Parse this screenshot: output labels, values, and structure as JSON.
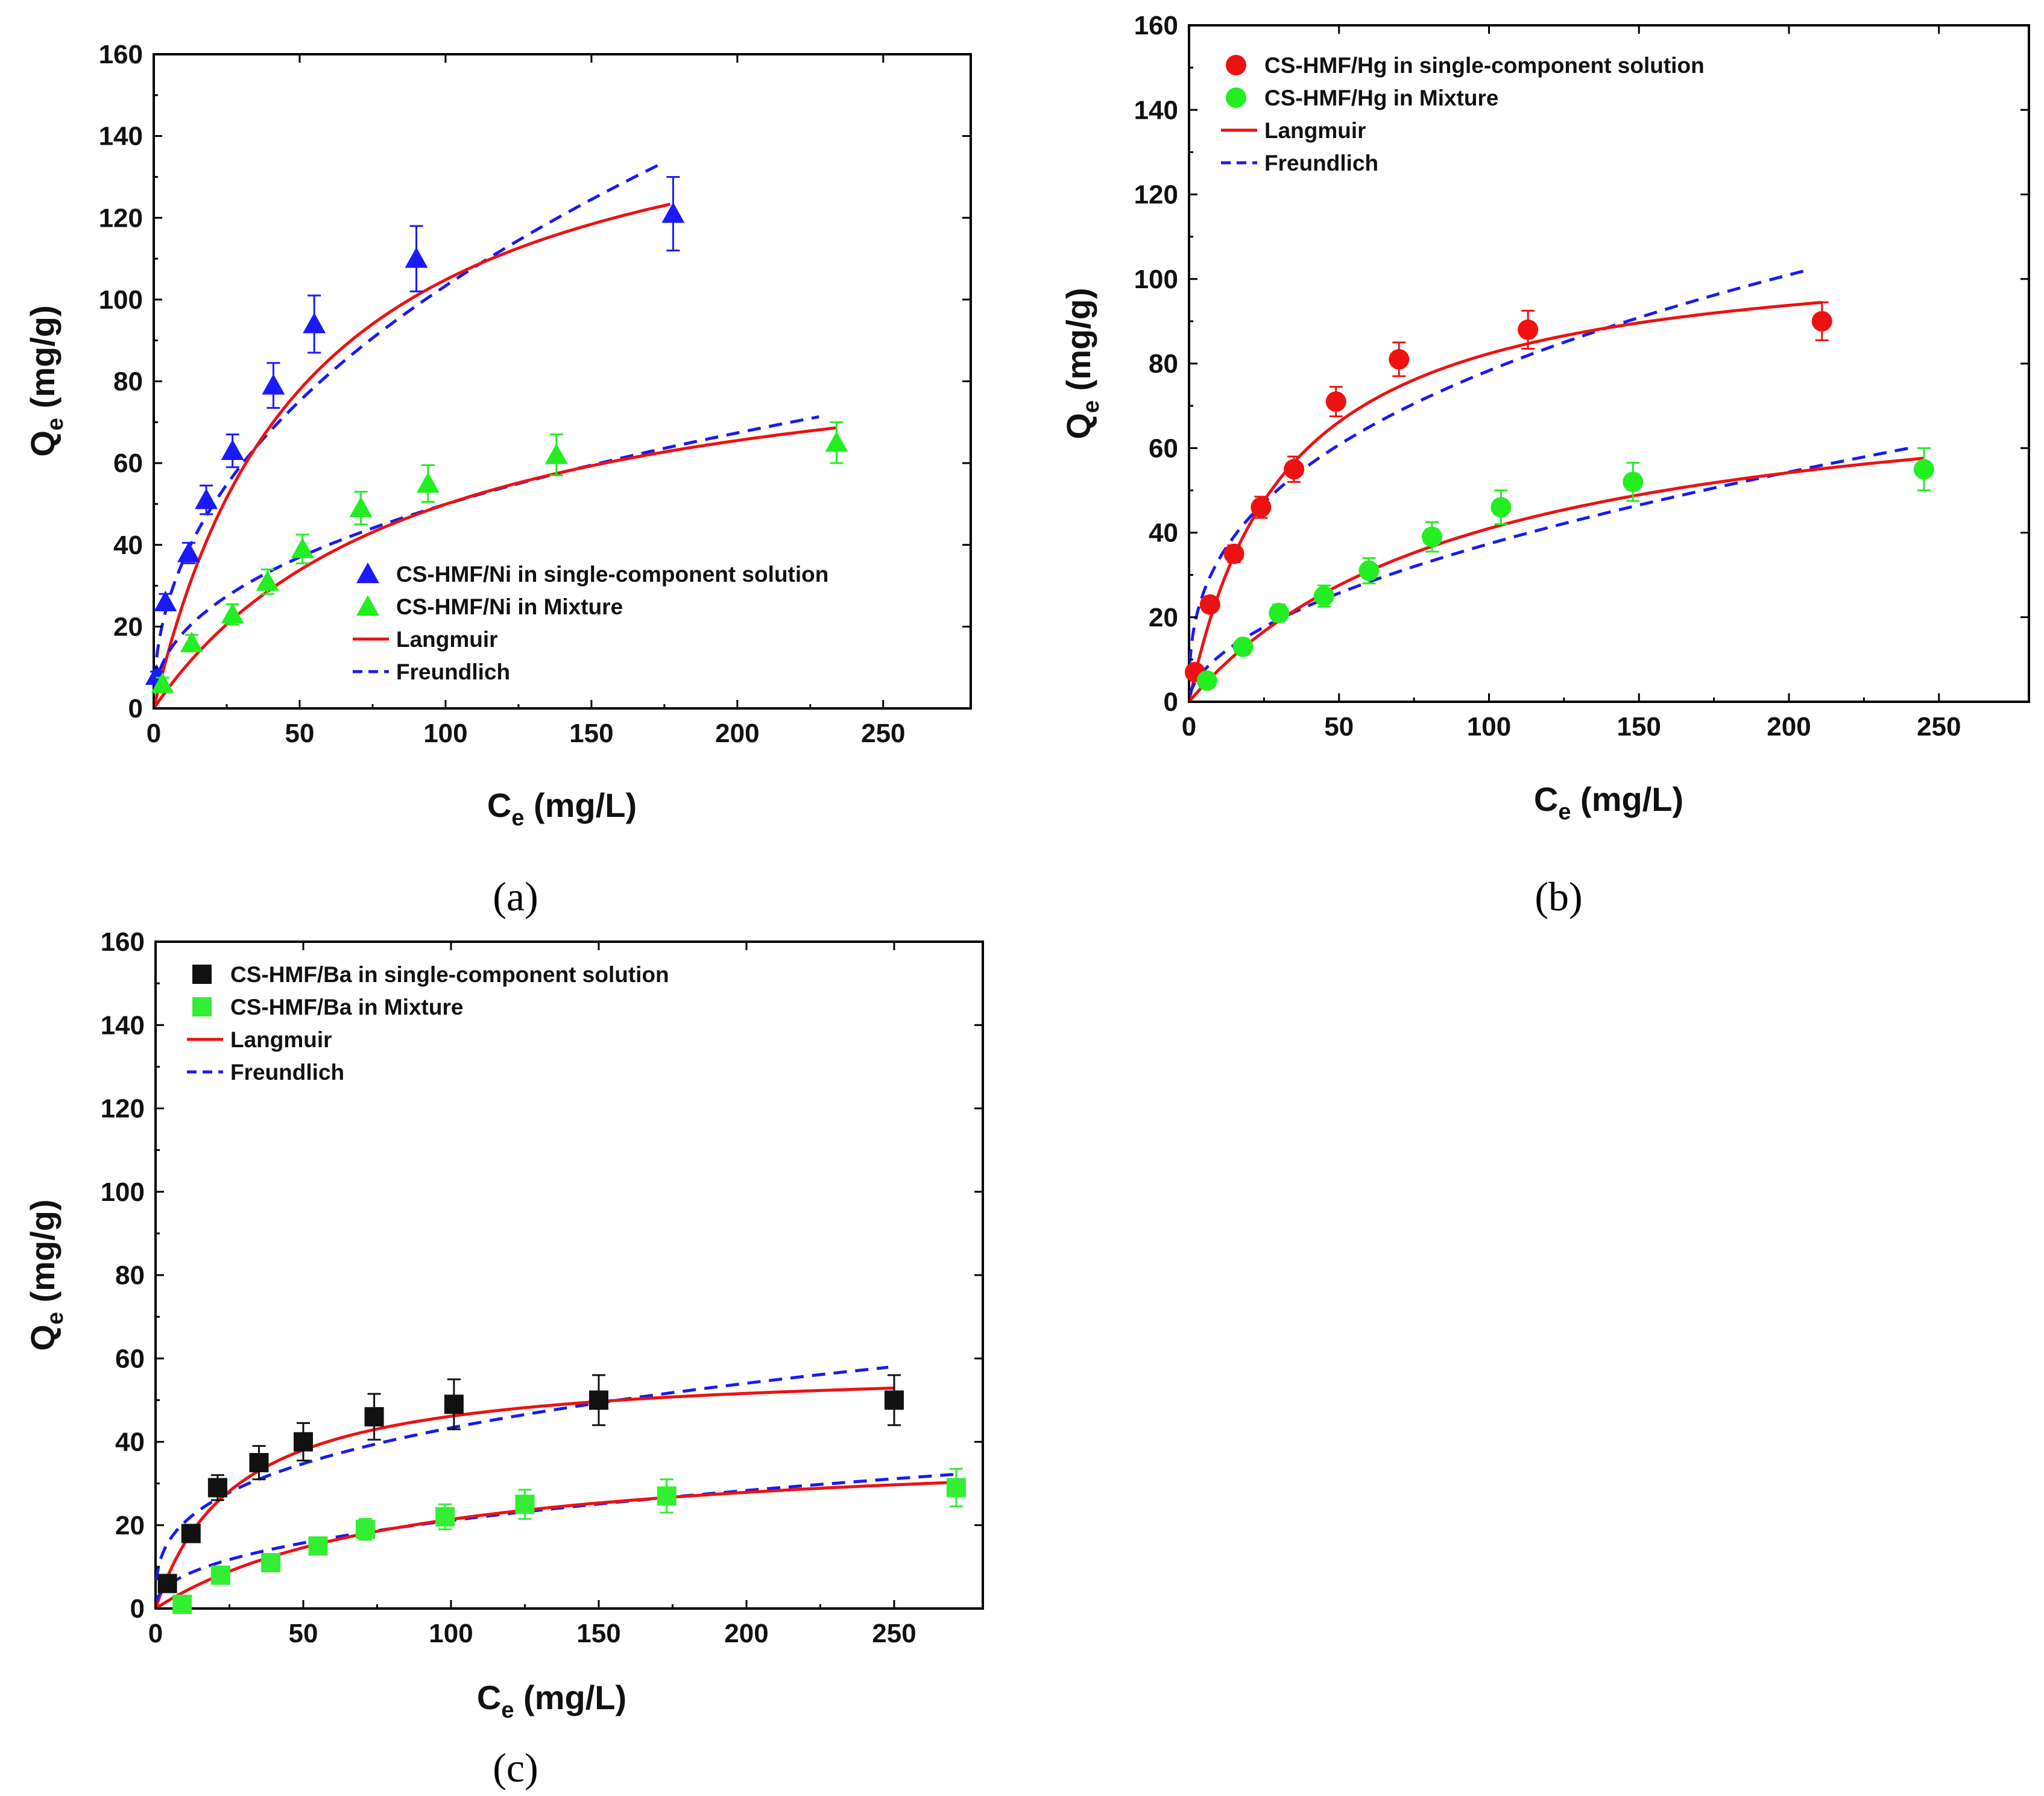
{
  "figure": {
    "panels": [
      "a",
      "b",
      "c"
    ]
  },
  "chart_data": [
    {
      "id": "a",
      "type": "scatter",
      "caption": "(a)",
      "xlabel": "C",
      "xlabel_sub": "e",
      "xlabel_unit": " (mg/L)",
      "ylabel": "Q",
      "ylabel_sub": "e",
      "ylabel_unit": " (mg/g)",
      "xlim": [
        0,
        280
      ],
      "ylim": [
        0,
        160
      ],
      "xticks": [
        0,
        50,
        100,
        150,
        200,
        250
      ],
      "yticks": [
        0,
        20,
        40,
        60,
        80,
        100,
        120,
        140,
        160
      ],
      "legend_position": "center-right",
      "series": [
        {
          "name": "CS-HMF/Ni in single-component solution",
          "marker": "triangle",
          "color": "#1a1aff",
          "errbar_color": "#1a1aff",
          "points": [
            {
              "x": 1,
              "y": 8,
              "err": 1
            },
            {
              "x": 4,
              "y": 26,
              "err": 2
            },
            {
              "x": 12,
              "y": 38,
              "err": 2.5
            },
            {
              "x": 18,
              "y": 51,
              "err": 3.5
            },
            {
              "x": 27,
              "y": 63,
              "err": 4
            },
            {
              "x": 41,
              "y": 79,
              "err": 5.5
            },
            {
              "x": 55,
              "y": 94,
              "err": 7
            },
            {
              "x": 90,
              "y": 110,
              "err": 8
            },
            {
              "x": 178,
              "y": 121,
              "err": 9
            }
          ],
          "langmuir": {
            "qmax": 160,
            "kl": 0.019,
            "xmax": 177
          },
          "freundlich": {
            "kf": 12.5,
            "n": 2.18,
            "xmax": 173
          }
        },
        {
          "name": "CS-HMF/Ni in Mixture",
          "marker": "triangle",
          "color": "#22ee22",
          "errbar_color": "#22ee22",
          "points": [
            {
              "x": 3,
              "y": 6,
              "err": 1.5
            },
            {
              "x": 13,
              "y": 16,
              "err": 2
            },
            {
              "x": 27,
              "y": 23,
              "err": 2.5
            },
            {
              "x": 39,
              "y": 31,
              "err": 3
            },
            {
              "x": 51,
              "y": 39,
              "err": 3.5
            },
            {
              "x": 71,
              "y": 49,
              "err": 4
            },
            {
              "x": 94,
              "y": 55,
              "err": 4.5
            },
            {
              "x": 138,
              "y": 62,
              "err": 5
            },
            {
              "x": 234,
              "y": 65,
              "err": 5
            }
          ],
          "langmuir": {
            "qmax": 95.3,
            "kl": 0.011,
            "xmax": 234
          },
          "freundlich": {
            "kf": 6.8,
            "n": 2.31,
            "xmax": 228
          }
        }
      ],
      "fit_legend": [
        {
          "name": "Langmuir",
          "style": "solid",
          "color": "#ee1111"
        },
        {
          "name": "Freundlich",
          "style": "dashed",
          "color": "#1a1aee"
        }
      ]
    },
    {
      "id": "b",
      "type": "scatter",
      "caption": "(b)",
      "xlabel": "C",
      "xlabel_sub": "e",
      "xlabel_unit": " (mg/L)",
      "ylabel": "Q",
      "ylabel_sub": "e",
      "ylabel_unit": " (mg/g)",
      "xlim": [
        0,
        280
      ],
      "ylim": [
        0,
        160
      ],
      "xticks": [
        0,
        50,
        100,
        150,
        200,
        250
      ],
      "yticks": [
        0,
        20,
        40,
        60,
        80,
        100,
        120,
        140,
        160
      ],
      "legend_position": "top-left",
      "series": [
        {
          "name": "CS-HMF/Hg in single-component solution",
          "marker": "circle",
          "color": "#ee1111",
          "errbar_color": "#ee1111",
          "points": [
            {
              "x": 2,
              "y": 7,
              "err": 1
            },
            {
              "x": 7,
              "y": 23,
              "err": 1.5
            },
            {
              "x": 15,
              "y": 35,
              "err": 2
            },
            {
              "x": 24,
              "y": 46,
              "err": 2.5
            },
            {
              "x": 35,
              "y": 55,
              "err": 3
            },
            {
              "x": 49,
              "y": 71,
              "err": 3.5
            },
            {
              "x": 70,
              "y": 81,
              "err": 4
            },
            {
              "x": 113,
              "y": 88,
              "err": 4.5
            },
            {
              "x": 211,
              "y": 90,
              "err": 4.5
            }
          ],
          "langmuir": {
            "qmax": 108.9,
            "kl": 0.031,
            "xmax": 211
          },
          "freundlich": {
            "kf": 14.5,
            "n": 2.73,
            "xmax": 206
          }
        },
        {
          "name": "CS-HMF/Hg in Mixture",
          "marker": "circle",
          "color": "#22ee22",
          "errbar_color": "#22ee22",
          "points": [
            {
              "x": 6,
              "y": 5,
              "err": 1
            },
            {
              "x": 18,
              "y": 13,
              "err": 1.5
            },
            {
              "x": 30,
              "y": 21,
              "err": 2
            },
            {
              "x": 45,
              "y": 25,
              "err": 2.5
            },
            {
              "x": 60,
              "y": 31,
              "err": 3
            },
            {
              "x": 81,
              "y": 39,
              "err": 3.5
            },
            {
              "x": 104,
              "y": 46,
              "err": 4
            },
            {
              "x": 148,
              "y": 52,
              "err": 4.5
            },
            {
              "x": 245,
              "y": 55,
              "err": 5
            }
          ],
          "langmuir": {
            "qmax": 80,
            "kl": 0.0105,
            "xmax": 245
          },
          "freundlich": {
            "kf": 3.1,
            "n": 1.85,
            "xmax": 242
          }
        }
      ],
      "fit_legend": [
        {
          "name": "Langmuir",
          "style": "solid",
          "color": "#ee1111"
        },
        {
          "name": "Freundlich",
          "style": "dashed",
          "color": "#1a1aee"
        }
      ]
    },
    {
      "id": "c",
      "type": "scatter",
      "caption": "(c)",
      "xlabel": "C",
      "xlabel_sub": "e",
      "xlabel_unit": " (mg/L)",
      "ylabel": "Q",
      "ylabel_sub": "e",
      "ylabel_unit": " (mg/g)",
      "xlim": [
        0,
        280
      ],
      "ylim": [
        0,
        160
      ],
      "xticks": [
        0,
        50,
        100,
        150,
        200,
        250
      ],
      "yticks": [
        0,
        20,
        40,
        60,
        80,
        100,
        120,
        140,
        160
      ],
      "legend_position": "top-left",
      "series": [
        {
          "name": "CS-HMF/Ba in single-component solution",
          "marker": "square",
          "color": "#111111",
          "errbar_color": "#111111",
          "points": [
            {
              "x": 4,
              "y": 6,
              "err": 1
            },
            {
              "x": 12,
              "y": 18,
              "err": 2
            },
            {
              "x": 21,
              "y": 29,
              "err": 3
            },
            {
              "x": 35,
              "y": 35,
              "err": 4
            },
            {
              "x": 50,
              "y": 40,
              "err": 4.5
            },
            {
              "x": 74,
              "y": 46,
              "err": 5.5
            },
            {
              "x": 101,
              "y": 49,
              "err": 6
            },
            {
              "x": 150,
              "y": 50,
              "err": 6
            },
            {
              "x": 250,
              "y": 50,
              "err": 6
            }
          ],
          "langmuir": {
            "qmax": 58.6,
            "kl": 0.037,
            "xmax": 250
          },
          "freundlich": {
            "kf": 10,
            "n": 3.14,
            "xmax": 248
          }
        },
        {
          "name": "CS-HMF/Ba in Mixture",
          "marker": "square",
          "color": "#33ee33",
          "errbar_color": "#33ee33",
          "points": [
            {
              "x": 9,
              "y": 1,
              "err": 1
            },
            {
              "x": 22,
              "y": 8,
              "err": 1
            },
            {
              "x": 39,
              "y": 11,
              "err": 1.5
            },
            {
              "x": 55,
              "y": 15,
              "err": 2
            },
            {
              "x": 71,
              "y": 19,
              "err": 2.5
            },
            {
              "x": 98,
              "y": 22,
              "err": 3
            },
            {
              "x": 125,
              "y": 25,
              "err": 3.5
            },
            {
              "x": 173,
              "y": 27,
              "err": 4
            },
            {
              "x": 271,
              "y": 29,
              "err": 4.5
            }
          ],
          "langmuir": {
            "qmax": 40,
            "kl": 0.0115,
            "xmax": 270
          },
          "freundlich": {
            "kf": 3,
            "n": 2.36,
            "xmax": 270
          }
        }
      ],
      "fit_legend": [
        {
          "name": "Langmuir",
          "style": "solid",
          "color": "#ee1111"
        },
        {
          "name": "Freundlich",
          "style": "dashed",
          "color": "#1a1aee"
        }
      ]
    }
  ]
}
